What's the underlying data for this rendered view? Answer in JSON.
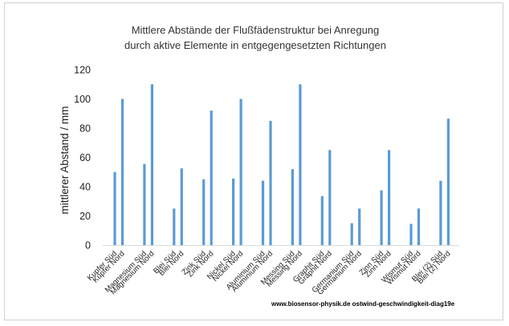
{
  "chart_data": {
    "type": "bar",
    "title": [
      "Mittlere Abstände der Flußfädenstruktur bei Anregung",
      "durch aktive Elemente in entgegengesetzten Richtungen"
    ],
    "ylabel": "mittlerer Abstand / mm",
    "xlabel": "",
    "ylim": [
      0,
      120
    ],
    "yticks": [
      0,
      20,
      40,
      60,
      80,
      100,
      120
    ],
    "grid": false,
    "legend": "none",
    "bar_color": "#5b9bd5",
    "categories": [
      "Kupfer Süd",
      "Kupfer Nord",
      "Magnesium Süd",
      "Magnesium Nord",
      "Blei Süd",
      "Blei Nord",
      "Zink Süd",
      "Zink Nord",
      "Nickel Süd",
      "Nickel Nord",
      "Aluminium Süd",
      "Aluminium Nord",
      "Messing Süd",
      "Messing Nord",
      "Graphit Süd",
      "Graphit Nord",
      "Germanium Süd",
      "Germanium Nord",
      "Zinn Süd",
      "Zinn Nord",
      "Wismut Süd",
      "Wismut Nord",
      "Blei (2) Süd",
      "Blei (2) Nord"
    ],
    "values": [
      50,
      100,
      55.5,
      110,
      25,
      52.5,
      45,
      92,
      45.5,
      100,
      44,
      85,
      52,
      110,
      33.5,
      65,
      15,
      25,
      37.5,
      65,
      14.5,
      25,
      44,
      86.5
    ]
  },
  "credit": "www.biosensor-physik.de  ostwind-geschwindigkeit-diag19e"
}
